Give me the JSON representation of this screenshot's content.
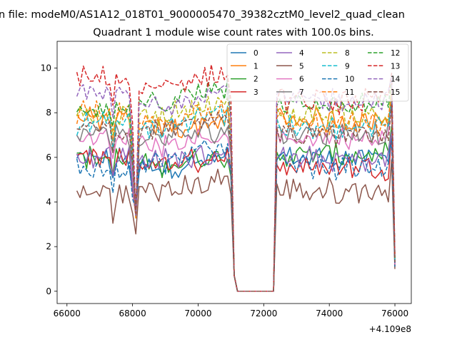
{
  "figure": {
    "suptitle": "n file: modeM0/AS1A12_018T01_9000005470_39382cztM0_level2_quad_clean",
    "title": "Quadrant 1 module wise count rates with 100.0s bins.",
    "offset_text": "+4.109e8"
  },
  "chart_data": {
    "type": "line",
    "title": "Quadrant 1 module wise count rates with 100.0s bins.",
    "xlabel": "",
    "ylabel": "",
    "xlim": [
      65700,
      76500
    ],
    "ylim": [
      -0.55,
      11.2
    ],
    "x_offset": 410900000,
    "x_ticks": [
      66000,
      68000,
      70000,
      72000,
      74000,
      76000
    ],
    "x_tick_labels": [
      "66000",
      "68000",
      "70000",
      "72000",
      "74000",
      "76000"
    ],
    "y_ticks": [
      0,
      2,
      4,
      6,
      8,
      10
    ],
    "y_tick_labels": [
      "0",
      "2",
      "4",
      "6",
      "8",
      "10"
    ],
    "grid": false,
    "legend": {
      "position": "top-right",
      "columns": 4
    },
    "x_start": 66300,
    "x_step": 100,
    "series": [
      {
        "name": "0",
        "color": "#1f77b4",
        "dash": "solid",
        "base": 5.9,
        "g1": 5.5,
        "g2": 6.0,
        "endv": 1.2
      },
      {
        "name": "1",
        "color": "#ff7f0e",
        "dash": "solid",
        "base": 7.7,
        "g1": 7.2,
        "g2": 7.7,
        "endv": 1.3
      },
      {
        "name": "2",
        "color": "#2ca02c",
        "dash": "solid",
        "base": 6.0,
        "g1": 5.6,
        "g2": 6.1,
        "endv": 1.3
      },
      {
        "name": "3",
        "color": "#d62728",
        "dash": "solid",
        "base": 5.9,
        "g1": 5.6,
        "g2": 5.6,
        "endv": 1.1
      },
      {
        "name": "4",
        "color": "#9467bd",
        "dash": "solid",
        "base": 6.1,
        "g1": 5.8,
        "g2": 5.9,
        "endv": 1.2
      },
      {
        "name": "5",
        "color": "#8c564b",
        "dash": "solid",
        "base": 4.4,
        "g1": 4.5,
        "g2": 4.5,
        "endv": 1.0
      },
      {
        "name": "6",
        "color": "#e377c2",
        "dash": "solid",
        "base": 6.8,
        "g1": 6.6,
        "g2": 6.9,
        "endv": 1.2
      },
      {
        "name": "7",
        "color": "#7f7f7f",
        "dash": "solid",
        "base": 7.0,
        "g1": 6.8,
        "g2": 7.1,
        "endv": 1.3
      },
      {
        "name": "8",
        "color": "#bcbd22",
        "dash": "dashed",
        "base": 7.8,
        "g1": 7.8,
        "g2": 7.9,
        "endv": 1.4
      },
      {
        "name": "9",
        "color": "#17becf",
        "dash": "dashed",
        "base": 7.5,
        "g1": 7.2,
        "g2": 7.3,
        "endv": 1.4
      },
      {
        "name": "10",
        "color": "#1f77b4",
        "dash": "dashed",
        "base": 5.5,
        "g1": 5.7,
        "g2": 5.6,
        "endv": 1.1
      },
      {
        "name": "11",
        "color": "#ff7f0e",
        "dash": "dashed",
        "base": 8.0,
        "g1": 7.5,
        "g2": 7.5,
        "endv": 1.5
      },
      {
        "name": "12",
        "color": "#2ca02c",
        "dash": "dashed",
        "base": 8.2,
        "g1": 8.3,
        "g2": 8.3,
        "endv": 1.5
      },
      {
        "name": "13",
        "color": "#d62728",
        "dash": "dashed",
        "base": 9.5,
        "g1": 9.0,
        "g2": 8.5,
        "endv": 1.6
      },
      {
        "name": "14",
        "color": "#9467bd",
        "dash": "dashed",
        "base": 8.8,
        "g1": 8.3,
        "g2": 8.6,
        "endv": 1.6
      },
      {
        "name": "15",
        "color": "#8c564b",
        "dash": "dashed",
        "base": 7.2,
        "g1": 7.1,
        "g2": 7.0,
        "endv": 1.3
      }
    ]
  }
}
